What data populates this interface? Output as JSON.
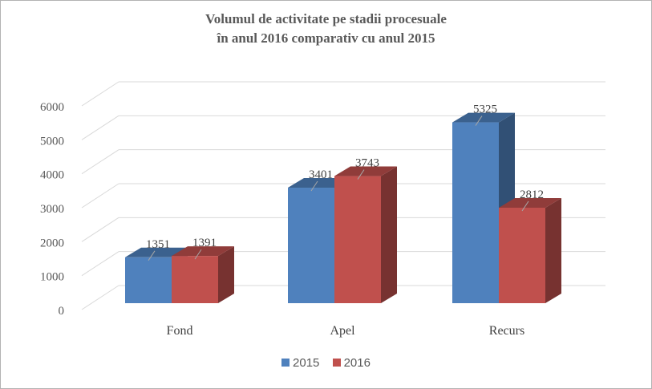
{
  "chart_data": {
    "type": "bar",
    "title_line1": "Volumul de activitate pe stadii procesuale",
    "title_line2": "în anul 2016 comparativ cu anul 2015",
    "categories": [
      "Fond",
      "Apel",
      "Recurs"
    ],
    "series": [
      {
        "name": "2015",
        "color": "#4F81BD",
        "values": [
          1351,
          3401,
          5325
        ]
      },
      {
        "name": "2016",
        "color": "#C0504D",
        "values": [
          1391,
          3743,
          2812
        ]
      }
    ],
    "yticks": [
      "0",
      "1000",
      "2000",
      "3000",
      "4000",
      "5000",
      "6000"
    ],
    "ylim": [
      0,
      6000
    ],
    "grid": true,
    "legend": "bottom",
    "style": "3d-clustered-column"
  }
}
